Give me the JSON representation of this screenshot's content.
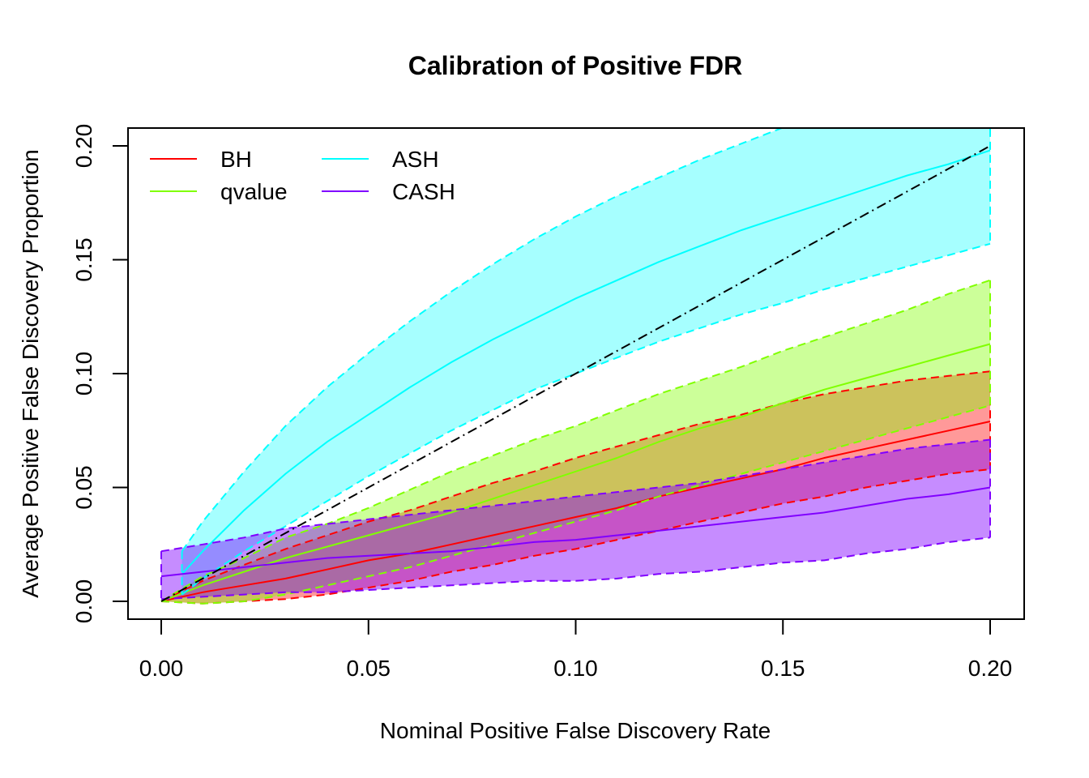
{
  "chart_data": {
    "type": "line",
    "title": "Calibration of Positive FDR",
    "xlabel": "Nominal Positive False Discovery Rate",
    "ylabel": "Average Positive False Discovery Proportion",
    "xlim": [
      0,
      0.2
    ],
    "ylim": [
      0,
      0.2
    ],
    "xticks": [
      "0.00",
      "0.05",
      "0.10",
      "0.15",
      "0.20"
    ],
    "yticks": [
      "0.00",
      "0.05",
      "0.10",
      "0.15",
      "0.20"
    ],
    "grid": false,
    "legend": {
      "position": "top-left",
      "columns": 2
    },
    "reference_line": {
      "name": "y = x",
      "style": "dot-dash",
      "color": "#000000",
      "x": [
        0,
        0.2
      ],
      "y": [
        0,
        0.2
      ]
    },
    "x": [
      0,
      0.01,
      0.02,
      0.03,
      0.04,
      0.05,
      0.06,
      0.07,
      0.08,
      0.09,
      0.1,
      0.11,
      0.12,
      0.13,
      0.14,
      0.15,
      0.16,
      0.17,
      0.18,
      0.19,
      0.2
    ],
    "series": [
      {
        "name": "BH",
        "color": "#ff0000",
        "fill": "rgba(255,0,0,0.4)",
        "mean": [
          0.0,
          0.004,
          0.007,
          0.01,
          0.014,
          0.018,
          0.021,
          0.025,
          0.029,
          0.033,
          0.037,
          0.041,
          0.046,
          0.05,
          0.054,
          0.058,
          0.063,
          0.067,
          0.071,
          0.075,
          0.079
        ],
        "upper": [
          0.0,
          0.009,
          0.016,
          0.023,
          0.029,
          0.035,
          0.04,
          0.046,
          0.052,
          0.057,
          0.063,
          0.068,
          0.073,
          0.078,
          0.082,
          0.087,
          0.091,
          0.094,
          0.097,
          0.099,
          0.101
        ],
        "lower": [
          0.0,
          -0.001,
          0.0,
          0.001,
          0.003,
          0.006,
          0.009,
          0.013,
          0.016,
          0.02,
          0.023,
          0.027,
          0.031,
          0.035,
          0.039,
          0.043,
          0.046,
          0.05,
          0.053,
          0.056,
          0.058
        ]
      },
      {
        "name": "qvalue",
        "color": "#80ff00",
        "fill": "rgba(128,255,0,0.4)",
        "mean": [
          0.0,
          0.007,
          0.013,
          0.019,
          0.024,
          0.029,
          0.034,
          0.039,
          0.045,
          0.051,
          0.057,
          0.063,
          0.07,
          0.076,
          0.081,
          0.087,
          0.093,
          0.098,
          0.103,
          0.108,
          0.113
        ],
        "upper": [
          0.0,
          0.011,
          0.019,
          0.028,
          0.034,
          0.041,
          0.049,
          0.057,
          0.064,
          0.071,
          0.077,
          0.084,
          0.091,
          0.097,
          0.103,
          0.11,
          0.116,
          0.122,
          0.128,
          0.135,
          0.141
        ],
        "lower": [
          0.0,
          -0.001,
          0.0,
          0.003,
          0.007,
          0.011,
          0.015,
          0.02,
          0.025,
          0.03,
          0.035,
          0.04,
          0.046,
          0.051,
          0.056,
          0.061,
          0.066,
          0.071,
          0.076,
          0.081,
          0.086
        ]
      },
      {
        "name": "ASH",
        "color": "#00ffff",
        "fill": "rgba(0,255,255,0.35)",
        "x_start": 0.005,
        "mean": [
          null,
          0.022,
          0.04,
          0.056,
          0.07,
          0.082,
          0.094,
          0.105,
          0.115,
          0.124,
          0.133,
          0.141,
          0.149,
          0.156,
          0.163,
          0.169,
          0.175,
          0.181,
          0.187,
          0.192,
          0.198
        ],
        "upper": [
          null,
          0.035,
          0.057,
          0.077,
          0.094,
          0.109,
          0.123,
          0.136,
          0.148,
          0.159,
          0.169,
          0.178,
          0.186,
          0.194,
          0.201,
          0.208,
          0.214,
          0.22,
          0.226,
          0.231,
          0.236
        ],
        "lower": [
          null,
          0.01,
          0.022,
          0.033,
          0.044,
          0.055,
          0.065,
          0.075,
          0.084,
          0.093,
          0.1,
          0.107,
          0.114,
          0.12,
          0.126,
          0.131,
          0.137,
          0.142,
          0.147,
          0.152,
          0.157
        ],
        "start_point": {
          "x": 0.005,
          "mean": 0.012,
          "upper": 0.022,
          "lower": 0.003
        }
      },
      {
        "name": "CASH",
        "color": "#8000ff",
        "fill": "rgba(128,0,255,0.45)",
        "mean": [
          0.011,
          0.013,
          0.015,
          0.017,
          0.019,
          0.02,
          0.021,
          0.022,
          0.024,
          0.026,
          0.027,
          0.029,
          0.031,
          0.033,
          0.035,
          0.037,
          0.039,
          0.042,
          0.045,
          0.047,
          0.05
        ],
        "upper": [
          0.022,
          0.025,
          0.028,
          0.032,
          0.034,
          0.036,
          0.038,
          0.04,
          0.042,
          0.044,
          0.046,
          0.048,
          0.05,
          0.052,
          0.055,
          0.058,
          0.061,
          0.064,
          0.067,
          0.069,
          0.071
        ],
        "lower": [
          0.001,
          0.002,
          0.003,
          0.004,
          0.004,
          0.005,
          0.006,
          0.007,
          0.008,
          0.009,
          0.009,
          0.01,
          0.012,
          0.013,
          0.015,
          0.017,
          0.018,
          0.021,
          0.023,
          0.026,
          0.028
        ]
      }
    ]
  }
}
